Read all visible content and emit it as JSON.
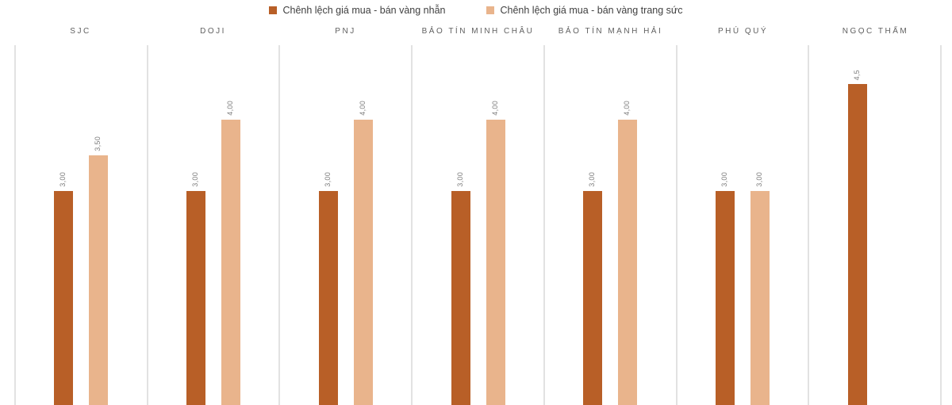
{
  "legend": {
    "items": [
      {
        "label": "Chênh lệch giá mua - bán vàng nhẫn",
        "color": "#B85F27"
      },
      {
        "label": "Chênh lệch giá mua - bán vàng trang sức",
        "color": "#E9B48C"
      }
    ]
  },
  "chart_data": {
    "type": "bar",
    "title": "",
    "xlabel": "",
    "ylabel": "",
    "categories": [
      "SJC",
      "DOJI",
      "PNJ",
      "BẢO TÍN MINH CHÂU",
      "BẢO TÍN MẠNH HẢI",
      "PHÚ QUÝ",
      "NGỌC THẨM"
    ],
    "series": [
      {
        "name": "Chênh lệch giá mua - bán vàng nhẫn",
        "color": "#B85F27",
        "values": [
          3.0,
          3.0,
          3.0,
          3.0,
          3.0,
          3.0,
          4.5
        ],
        "labels": [
          "3,00",
          "3,00",
          "3,00",
          "3,00",
          "3,00",
          "3,00",
          "4,5"
        ]
      },
      {
        "name": "Chênh lệch giá mua - bán vàng trang sức",
        "color": "#E9B48C",
        "values": [
          3.5,
          4.0,
          4.0,
          4.0,
          4.0,
          3.0,
          null
        ],
        "labels": [
          "3,50",
          "4,00",
          "4,00",
          "4,00",
          "4,00",
          "3,00",
          ""
        ]
      }
    ],
    "ylim": [
      0,
      5.05
    ],
    "grid": "vertical-category-separators",
    "legend_position": "top-center",
    "value_label_rotation": -90,
    "decimal_separator": ","
  },
  "colors": {
    "background": "#FFFFFF",
    "gridline": "#E2E2E2",
    "category_label_text": "#5F5F5F",
    "value_label_text": "#7F7F7F",
    "legend_text": "#404040"
  }
}
